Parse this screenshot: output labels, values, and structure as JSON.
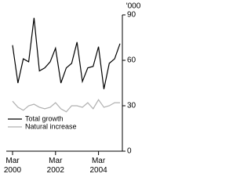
{
  "chart_data": {
    "type": "line",
    "y_label": "'000",
    "categories": [
      "Mar 2000",
      null,
      null,
      null,
      null,
      null,
      null,
      null,
      "Mar 2002",
      null,
      null,
      null,
      null,
      null,
      null,
      null,
      "Mar 2004",
      null,
      null,
      null,
      null
    ],
    "series": [
      {
        "name": "Total growth",
        "color": "#000000",
        "values": [
          70,
          45,
          61,
          59,
          88,
          53,
          55,
          59,
          68,
          45,
          55,
          58,
          72,
          46,
          55,
          56,
          69,
          41,
          58,
          61,
          71
        ]
      },
      {
        "name": "Natural increase",
        "color": "#b0b0b0",
        "values": [
          33,
          29,
          27,
          30,
          31,
          29,
          28,
          29,
          32,
          28,
          26,
          30,
          30,
          29,
          32,
          28,
          34,
          29,
          30,
          32,
          32
        ]
      }
    ],
    "ylim": [
      0,
      90
    ],
    "yticks": [
      0,
      30,
      60,
      90
    ],
    "legend": "lower left"
  }
}
